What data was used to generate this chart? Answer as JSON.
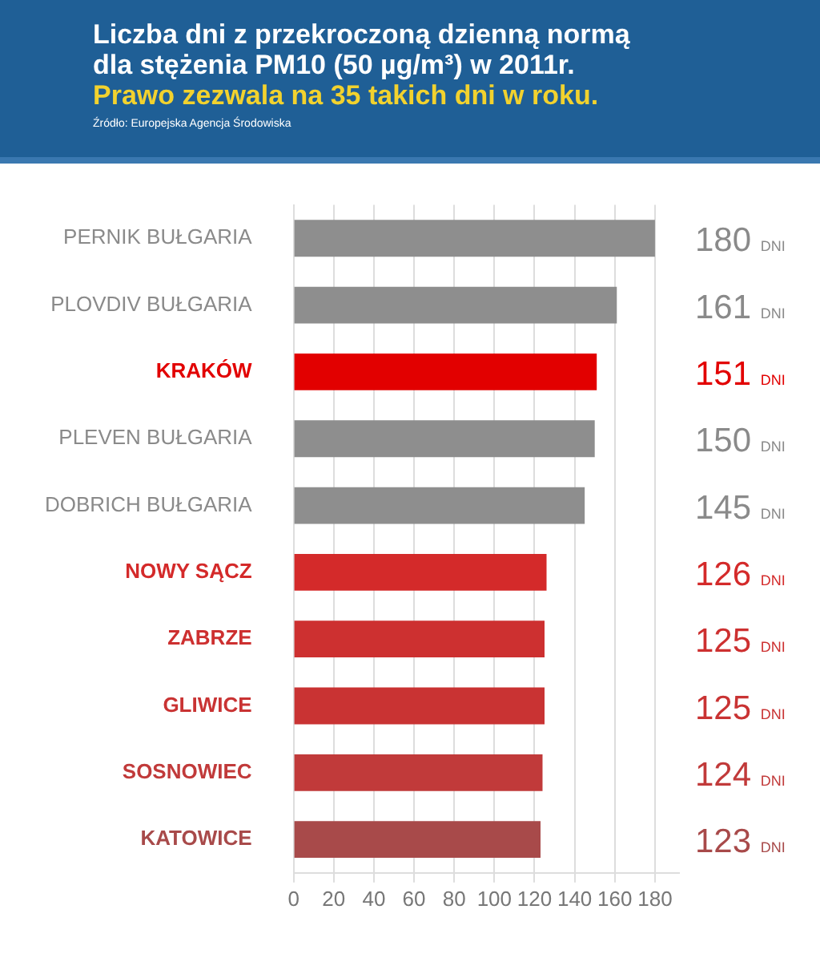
{
  "chart_data": {
    "type": "bar",
    "orientation": "horizontal",
    "title": "Liczba dni z przekroczoną dzienną normą dla stężenia PM10 (50 µg/m³) w 2011r.",
    "subtitle": "Prawo zezwala na 35 takich dni w roku.",
    "annotations": [
      "Źródło: Europejska Agencja Środowiska"
    ],
    "categories": [
      "PERNIK BUŁGARIA",
      "PLOVDIV BUŁGARIA",
      "KRAKÓW",
      "PLEVEN BUŁGARIA",
      "DOBRICH BUŁGARIA",
      "NOWY SĄCZ",
      "ZABRZE",
      "GLIWICE",
      "SOSNOWIEC",
      "KATOWICE"
    ],
    "values": [
      180,
      161,
      151,
      150,
      145,
      126,
      125,
      125,
      124,
      123
    ],
    "colors": [
      "#8e8e8e",
      "#8e8e8e",
      "#e20000",
      "#8e8e8e",
      "#8e8e8e",
      "#d42a2a",
      "#cd3030",
      "#c93333",
      "#c13a3a",
      "#a84a4a"
    ],
    "value_labels": [
      "180 DNI",
      "161 DNI",
      "151 DNI",
      "150 DNI",
      "145 DNI",
      "126 DNI",
      "125 DNI",
      "125 DNI",
      "124 DNI",
      "123 DNI"
    ],
    "xlim": [
      0,
      192
    ],
    "xticks": [
      0,
      20,
      40,
      60,
      80,
      100,
      120,
      140,
      160,
      180
    ],
    "grid": "x",
    "legend": false
  }
}
